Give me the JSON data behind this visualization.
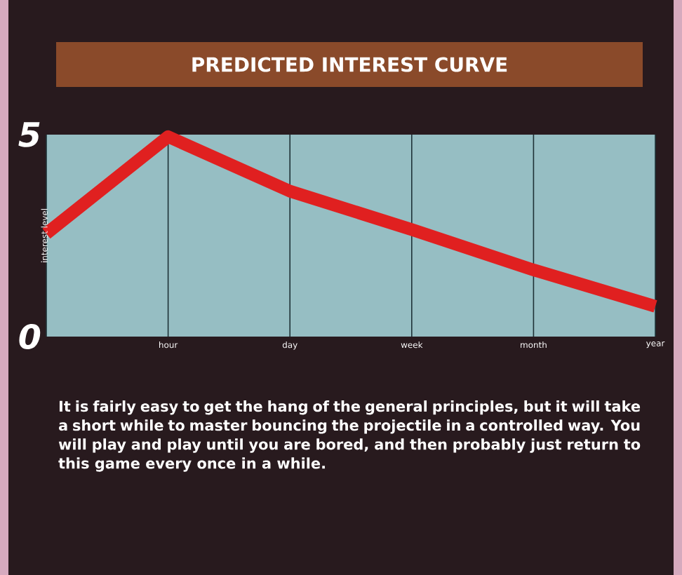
{
  "chart_data": {
    "type": "line",
    "title": "PREDICTED INTEREST CURVE",
    "ylabel": "interest level",
    "categories": [
      null,
      "hour",
      "day",
      "week",
      "month",
      "year"
    ],
    "series": [
      {
        "color": "#e02020",
        "values": [
          2.55,
          4.95,
          3.6,
          2.65,
          1.65,
          0.75
        ]
      }
    ],
    "ylim": [
      0,
      5
    ],
    "yticks": [
      0,
      5
    ],
    "grid": "x",
    "marker": "none",
    "line_style": "solid",
    "annotations": [
      "It is fairly easy to get the hang of the general principles, but it will take a short while to master bouncing the projectile in a controlled way. You will play and play until you are bored, and then probably just return to this game every once in a while."
    ]
  }
}
